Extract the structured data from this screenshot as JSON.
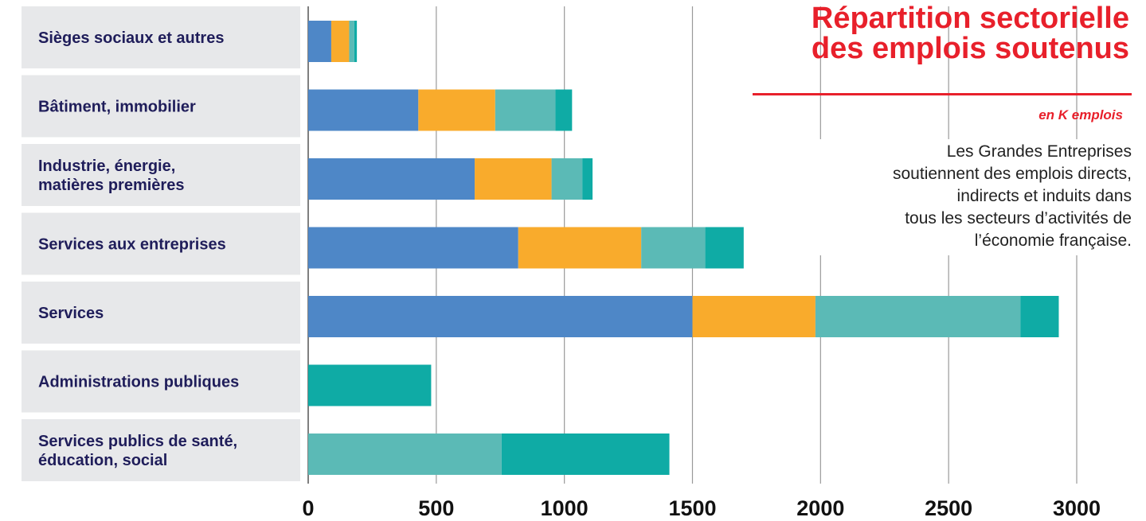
{
  "chart_data": {
    "type": "bar",
    "orientation": "horizontal",
    "stacked": true,
    "title": "Répartition sectorielle des emplois soutenus",
    "title_lines": [
      "Répartition sectorielle",
      "des emplois soutenus"
    ],
    "unit_label": "en K emplois",
    "annotation_lines": [
      "Les Grandes Entreprises",
      "soutiennent des emplois directs,",
      "indirects et induits dans",
      "tous les secteurs d’activités de",
      "l’économie française."
    ],
    "categories": [
      [
        "Sièges sociaux et autres"
      ],
      [
        "Bâtiment, immobilier"
      ],
      [
        "Industrie, énergie,",
        "matières premières"
      ],
      [
        "Services aux entreprises"
      ],
      [
        "Services"
      ],
      [
        "Administrations publiques"
      ],
      [
        "Services publics de santé,",
        "éducation, social"
      ]
    ],
    "series": [
      {
        "color": "#4e87c7",
        "values": [
          90,
          430,
          650,
          820,
          1500,
          0,
          0
        ]
      },
      {
        "color": "#f9ab2c",
        "values": [
          70,
          300,
          300,
          480,
          480,
          0,
          0
        ]
      },
      {
        "color": "#5bbab6",
        "values": [
          20,
          235,
          120,
          250,
          800,
          0,
          755
        ]
      },
      {
        "color": "#0faba5",
        "values": [
          10,
          65,
          40,
          150,
          150,
          480,
          655
        ]
      }
    ],
    "xlim": [
      0,
      3000
    ],
    "xticks": [
      0,
      500,
      1000,
      1500,
      2000,
      2500,
      3000
    ],
    "xtick_labels": [
      "0",
      "500",
      "1000",
      "1500",
      "2000",
      "2500",
      "3000"
    ],
    "grid": true,
    "legend": "none"
  }
}
